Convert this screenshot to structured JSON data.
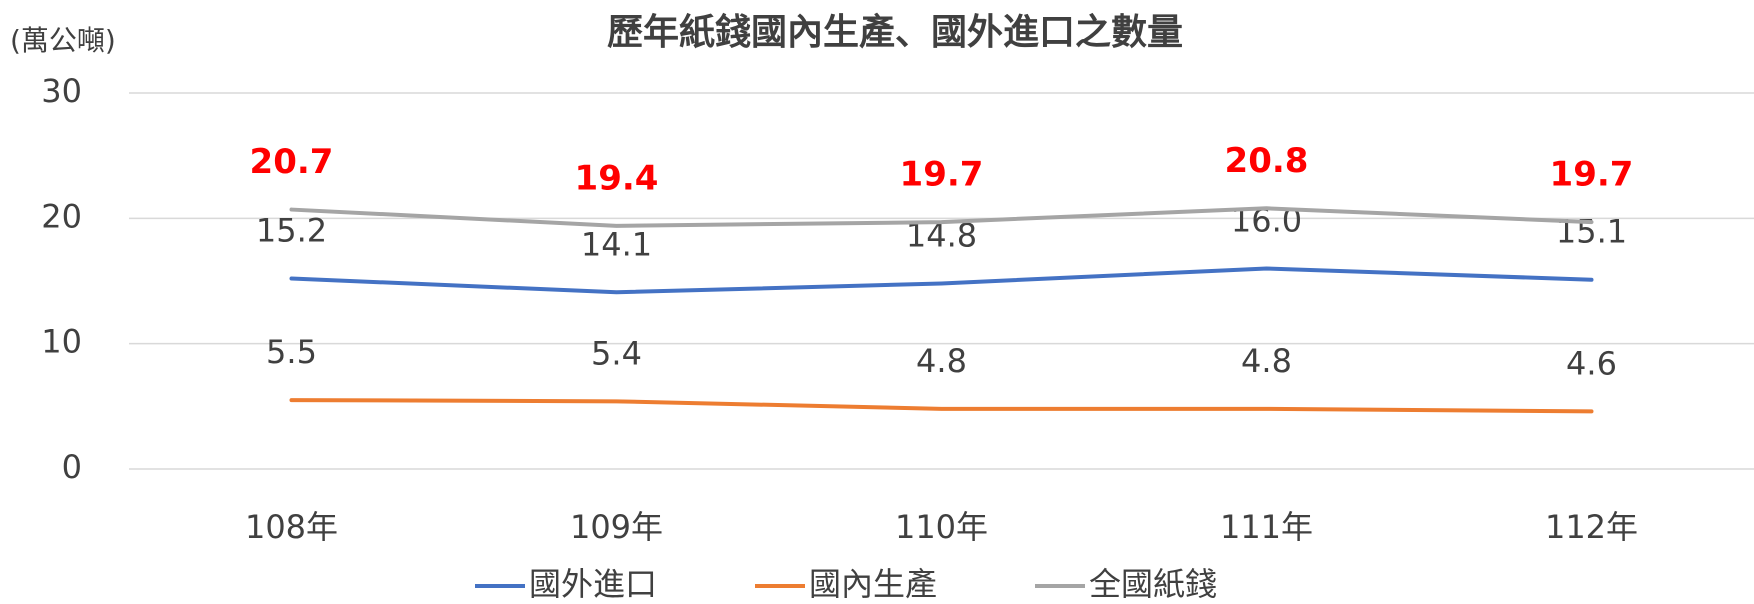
{
  "chart_data": {
    "type": "line",
    "title": "歷年紙錢國內生產、國外進口之數量",
    "y_label": "(萬公噸)",
    "categories": [
      "108年",
      "109年",
      "110年",
      "111年",
      "112年"
    ],
    "series": [
      {
        "name": "國外進口",
        "color": "#4472c4",
        "label_color": "#404040",
        "label_bold": false,
        "values": [
          15.2,
          14.1,
          14.8,
          16.0,
          15.1
        ],
        "value_labels": [
          "15.2",
          "14.1",
          "14.8",
          "16.0",
          "15.1"
        ]
      },
      {
        "name": "國內生產",
        "color": "#ed7d31",
        "label_color": "#404040",
        "label_bold": false,
        "values": [
          5.5,
          5.4,
          4.8,
          4.8,
          4.6
        ],
        "value_labels": [
          "5.5",
          "5.4",
          "4.8",
          "4.8",
          "4.6"
        ]
      },
      {
        "name": "全國紙錢",
        "color": "#a5a5a5",
        "label_color": "#ff0000",
        "label_bold": true,
        "values": [
          20.7,
          19.4,
          19.7,
          20.8,
          19.7
        ],
        "value_labels": [
          "20.7",
          "19.4",
          "19.7",
          "20.8",
          "19.7"
        ]
      }
    ],
    "ylim": [
      0,
      30
    ],
    "yticks": [
      0,
      10,
      20,
      30
    ],
    "grid": true,
    "legend": "bottom"
  }
}
